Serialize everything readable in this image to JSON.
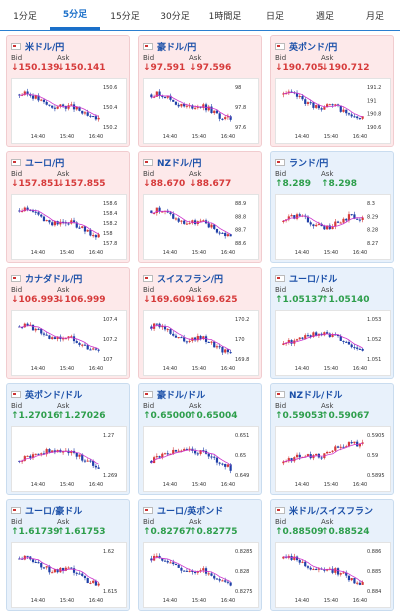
{
  "tabs": [
    {
      "label": "1分足",
      "active": false
    },
    {
      "label": "5分足",
      "active": true
    },
    {
      "label": "15分足",
      "active": false
    },
    {
      "label": "30分足",
      "active": false
    },
    {
      "label": "1時間足",
      "active": false
    },
    {
      "label": "日足",
      "active": false
    },
    {
      "label": "週足",
      "active": false
    },
    {
      "label": "月足",
      "active": false
    }
  ],
  "labels": {
    "bid": "Bid",
    "ask": "Ask"
  },
  "colors": {
    "down_bg": "#fde9ea",
    "up_bg": "#e8f1fb",
    "candle_up": "#d63a3a",
    "candle_down": "#1f3fa8",
    "ma": "#cc33cc",
    "arrow_down": "#d63a3a",
    "arrow_up": "#2d9e4b"
  },
  "cards": [
    {
      "name": "米ドル/円",
      "dir": "down",
      "bid": "↓150.139",
      "ask": "↓150.141",
      "time_labels": [
        "14:40",
        "15:40",
        "16:40"
      ],
      "y_labels": [
        "150.6",
        "150.4",
        "150.2"
      ],
      "trend": "down"
    },
    {
      "name": "豪ドル/円",
      "dir": "down",
      "bid": "↓97.591",
      "ask": "↓97.596",
      "time_labels": [
        "14:40",
        "15:40",
        "16:40"
      ],
      "y_labels": [
        "98",
        "97.8",
        "97.6"
      ],
      "trend": "down"
    },
    {
      "name": "英ポンド/円",
      "dir": "down",
      "bid": "↓190.705",
      "ask": "↓190.712",
      "time_labels": [
        "14:40",
        "15:40",
        "16:40"
      ],
      "y_labels": [
        "191.2",
        "191",
        "190.8",
        "190.6"
      ],
      "trend": "down"
    },
    {
      "name": "ユーロ/円",
      "dir": "down",
      "bid": "↓157.851",
      "ask": "↓157.855",
      "time_labels": [
        "14:40",
        "15:40",
        "16:40"
      ],
      "y_labels": [
        "158.6",
        "158.4",
        "158.2",
        "158",
        "157.8"
      ],
      "trend": "down"
    },
    {
      "name": "NZドル/円",
      "dir": "down",
      "bid": "↓88.670",
      "ask": "↓88.677",
      "time_labels": [
        "14:40",
        "15:40",
        "16:40"
      ],
      "y_labels": [
        "88.9",
        "88.8",
        "88.7",
        "88.6"
      ],
      "trend": "down"
    },
    {
      "name": "ランド/円",
      "dir": "up",
      "bid": "↑8.289",
      "ask": "↑8.298",
      "time_labels": [
        "14:40",
        "15:40",
        "16:40"
      ],
      "y_labels": [
        "8.3",
        "8.29",
        "8.28",
        "8.27"
      ],
      "trend": "flat"
    },
    {
      "name": "カナダドル/円",
      "dir": "down",
      "bid": "↓106.993",
      "ask": "↓106.999",
      "time_labels": [
        "14:40",
        "15:40",
        "16:40"
      ],
      "y_labels": [
        "107.4",
        "107.2",
        "107"
      ],
      "trend": "down"
    },
    {
      "name": "スイスフラン/円",
      "dir": "down",
      "bid": "↓169.609",
      "ask": "↓169.625",
      "time_labels": [
        "14:40",
        "15:40",
        "16:40"
      ],
      "y_labels": [
        "170.2",
        "170",
        "169.8"
      ],
      "trend": "down"
    },
    {
      "name": "ユーロ/ドル",
      "dir": "up",
      "bid": "↑1.05137",
      "ask": "↑1.05140",
      "time_labels": [
        "14:40",
        "15:40",
        "16:40"
      ],
      "y_labels": [
        "1.053",
        "1.052",
        "1.051"
      ],
      "trend": "updown"
    },
    {
      "name": "英ポンド/ドル",
      "dir": "up",
      "bid": "↑1.27016",
      "ask": "↑1.27026",
      "time_labels": [
        "14:40",
        "15:40",
        "16:40"
      ],
      "y_labels": [
        "1.27",
        "1.269"
      ],
      "trend": "updown"
    },
    {
      "name": "豪ドル/ドル",
      "dir": "up",
      "bid": "↑0.65000",
      "ask": "↑0.65004",
      "time_labels": [
        "14:40",
        "15:40",
        "16:40"
      ],
      "y_labels": [
        "0.651",
        "0.65",
        "0.649"
      ],
      "trend": "updown"
    },
    {
      "name": "NZドル/ドル",
      "dir": "up",
      "bid": "↑0.59053",
      "ask": "↑0.59067",
      "time_labels": [
        "14:40",
        "15:40",
        "16:40"
      ],
      "y_labels": [
        "0.5905",
        "0.59",
        "0.5895"
      ],
      "trend": "up"
    },
    {
      "name": "ユーロ/豪ドル",
      "dir": "up",
      "bid": "↑1.61739",
      "ask": "↑1.61753",
      "time_labels": [
        "14:40",
        "15:40",
        "16:40"
      ],
      "y_labels": [
        "1.62",
        "1.615"
      ],
      "trend": "down"
    },
    {
      "name": "ユーロ/英ポンド",
      "dir": "up",
      "bid": "↑0.82767",
      "ask": "↑0.82775",
      "time_labels": [
        "14:40",
        "15:40",
        "16:40"
      ],
      "y_labels": [
        "0.8285",
        "0.828",
        "0.8275"
      ],
      "trend": "down"
    },
    {
      "name": "米ドル/スイスフラン",
      "dir": "up",
      "bid": "↑0.88509",
      "ask": "↑0.88524",
      "time_labels": [
        "14:40",
        "15:40",
        "16:40"
      ],
      "y_labels": [
        "0.886",
        "0.885",
        "0.884"
      ],
      "trend": "down"
    }
  ]
}
